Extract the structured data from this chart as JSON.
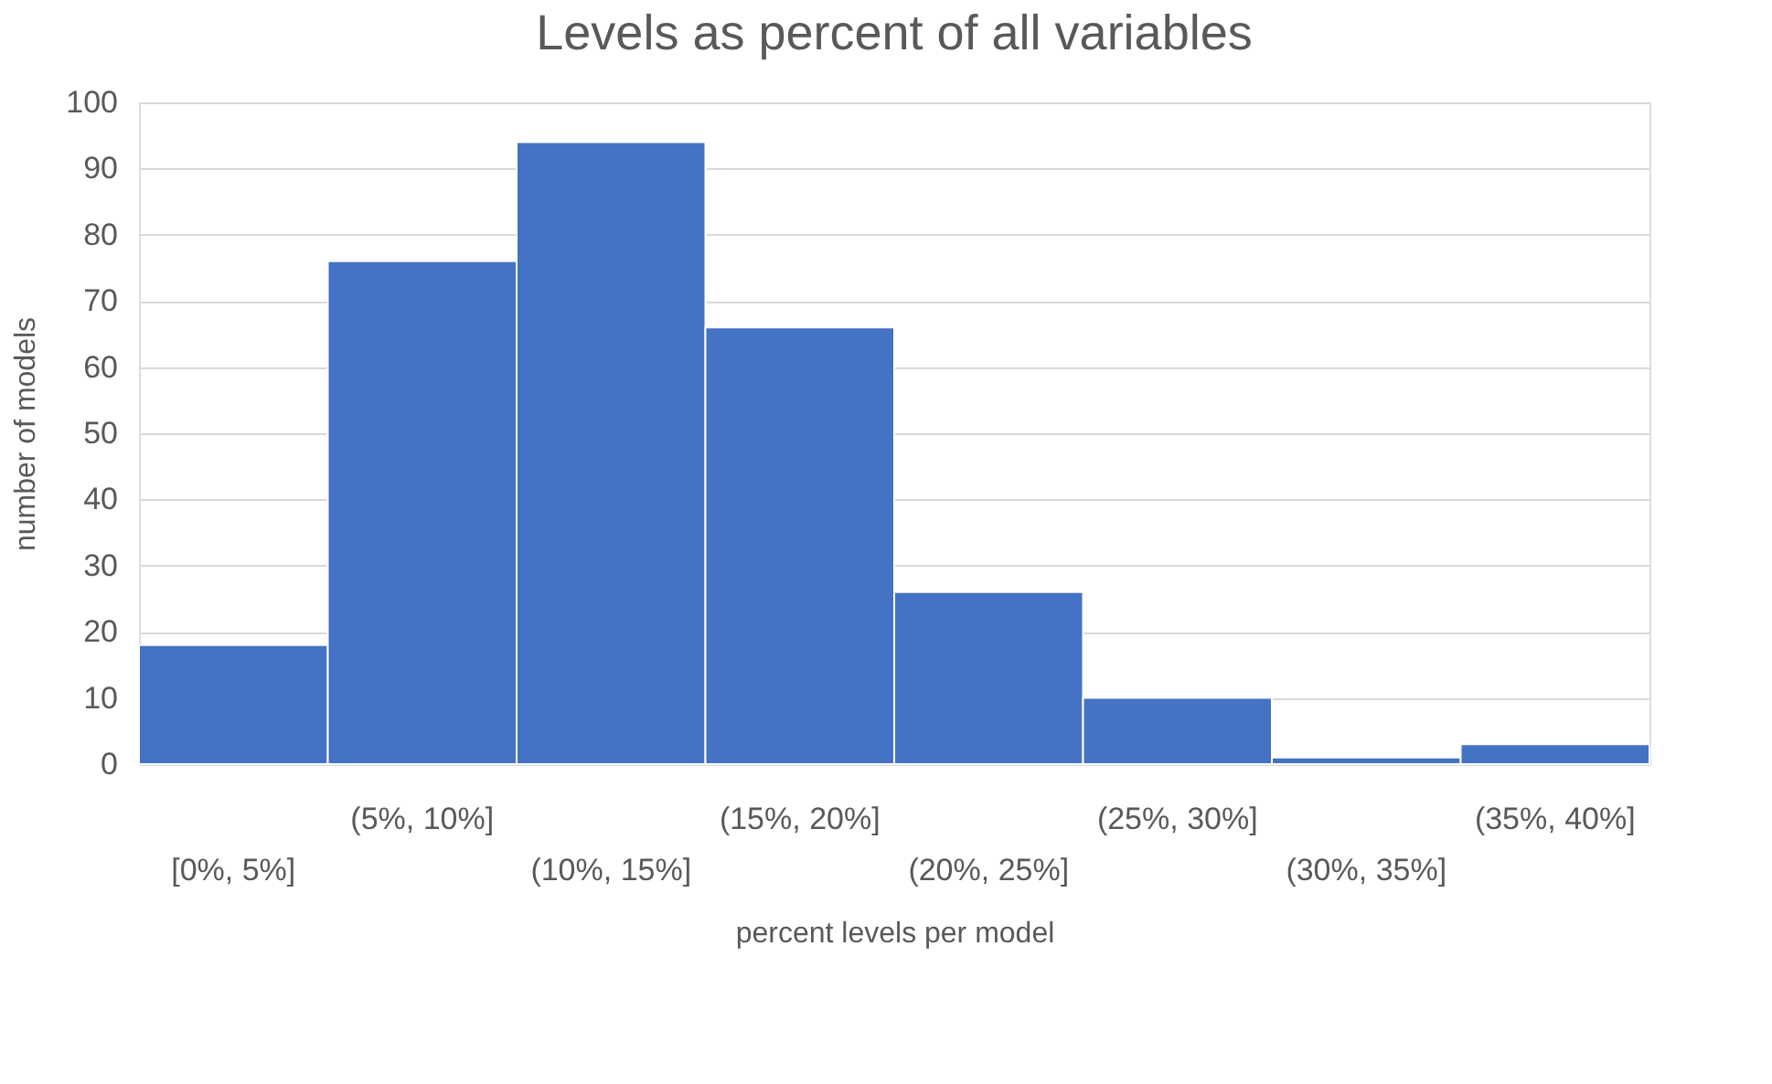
{
  "chart_data": {
    "type": "bar",
    "title": "Levels as percent of all variables",
    "xlabel": "percent levels per model",
    "ylabel": "number of models",
    "categories": [
      "[0%, 5%]",
      "(5%, 10%]",
      "(10%, 15%]",
      "(15%, 20%]",
      "(20%, 25%]",
      "(25%, 30%]",
      "(30%, 35%]",
      "(35%, 40%]"
    ],
    "values": [
      18,
      76,
      94,
      66,
      26,
      10,
      1,
      3
    ],
    "color": "#4472c4",
    "ylim": [
      0,
      100
    ],
    "yticks": [
      0,
      10,
      20,
      30,
      40,
      50,
      60,
      70,
      80,
      90,
      100
    ],
    "grid": "y"
  }
}
